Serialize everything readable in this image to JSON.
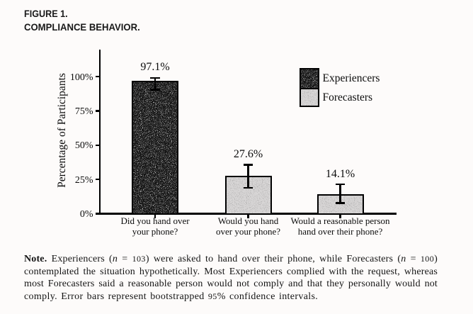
{
  "header": {
    "figure_label": "FIGURE 1.",
    "figure_title": "COMPLIANCE BEHAVIOR."
  },
  "chart_data": {
    "type": "bar",
    "title": "",
    "xlabel": "",
    "ylabel": "Percentage of Participants",
    "ylim": [
      0,
      100
    ],
    "grid": false,
    "legend_position": "upper right",
    "yticks": [
      {
        "value": 0,
        "label": "0%"
      },
      {
        "value": 25,
        "label": "25%"
      },
      {
        "value": 50,
        "label": "50%"
      },
      {
        "value": 75,
        "label": "75%"
      },
      {
        "value": 100,
        "label": "100%"
      }
    ],
    "categories": [
      [
        "Did you hand over",
        "your phone?"
      ],
      [
        "Would you hand",
        "over your phone?"
      ],
      [
        "Would a reasonable person",
        "hand over their phone?"
      ]
    ],
    "values": [
      97.1,
      27.6,
      14.1
    ],
    "value_labels": [
      "97.1%",
      "27.6%",
      "14.1%"
    ],
    "bar_series": [
      "Experiencers",
      "Forecasters",
      "Forecasters"
    ],
    "error_bars": [
      {
        "low": 90.5,
        "high": 99.1
      },
      {
        "low": 18.9,
        "high": 35.7
      },
      {
        "low": 7.7,
        "high": 21.3
      }
    ],
    "legend": [
      {
        "label": "Experiencers",
        "swatch": "dark"
      },
      {
        "label": "Forecasters",
        "swatch": "light"
      }
    ],
    "colors": {
      "experiencers_fill": "#141414",
      "forecasters_fill": "#dedcdc",
      "axis": "#000000",
      "background": "#fdfbfa"
    }
  },
  "note": {
    "lines": [
      [
        {
          "t": "Note.",
          "b": true
        },
        {
          "t": " Experiencers ("
        },
        {
          "t": "n",
          "i": true
        },
        {
          "t": " = "
        },
        {
          "t": "103",
          "n": true
        },
        {
          "t": ") were asked to hand over their phone, while Forecasters ("
        },
        {
          "t": "n",
          "i": true
        },
        {
          "t": " = "
        },
        {
          "t": "100",
          "n": true
        },
        {
          "t": ")"
        }
      ],
      [
        {
          "t": "contemplated the situation hypothetically. Most Experiencers complied with the request, whereas"
        }
      ],
      [
        {
          "t": "most Forecasters said a reasonable person would not comply and that they personally would not"
        }
      ],
      [
        {
          "t": "comply. Error bars represent bootstrapped "
        },
        {
          "t": "95",
          "n": true
        },
        {
          "t": "% confidence intervals."
        }
      ]
    ]
  }
}
